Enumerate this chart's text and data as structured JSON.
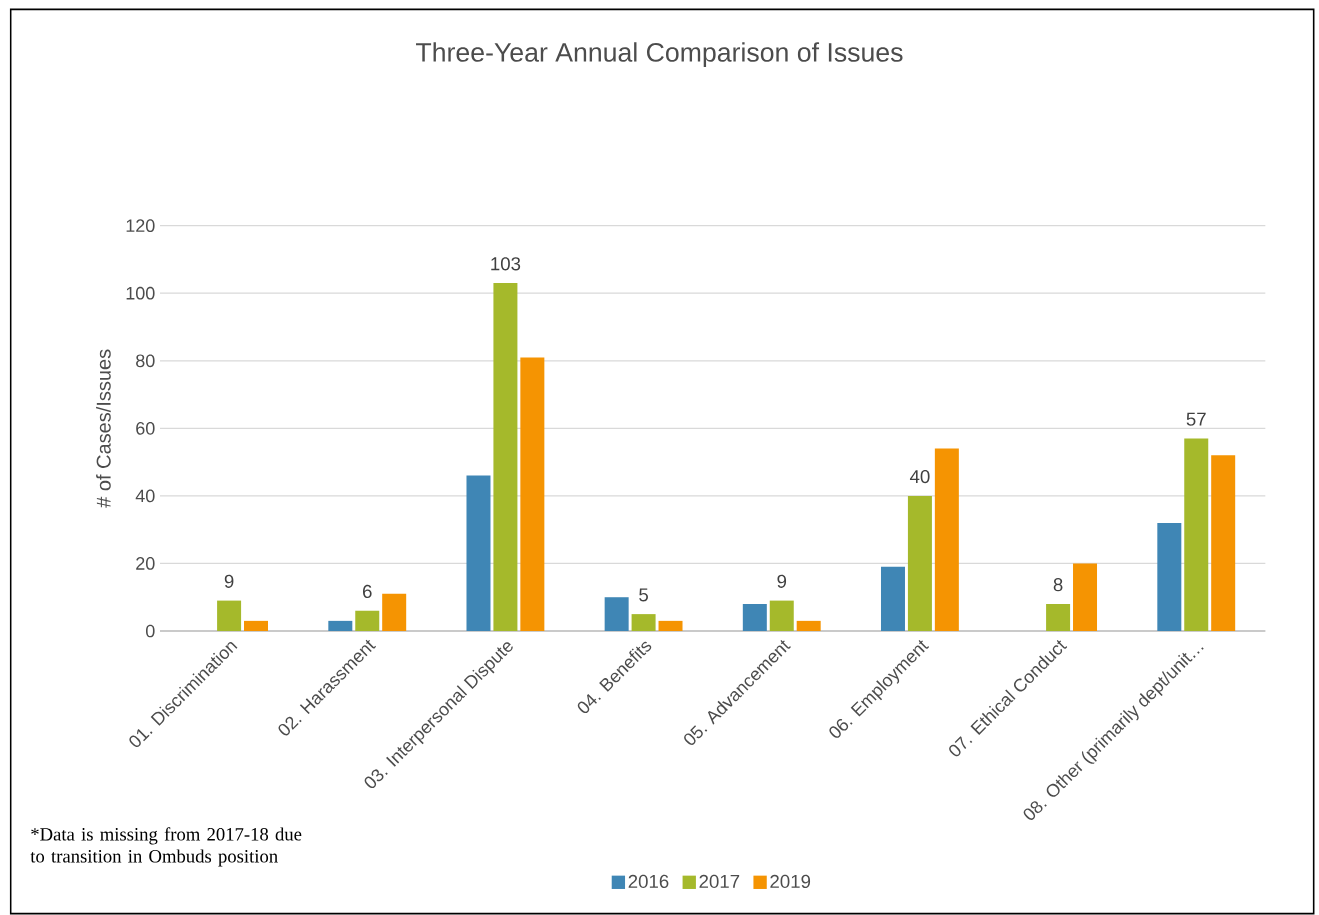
{
  "chart_data": {
    "type": "bar",
    "title": "Three-Year Annual Comparison of Issues",
    "ylabel": "# of Cases/Issues",
    "categories": [
      "01. Discrimination",
      "02. Harassment",
      "03. Interpersonal Dispute",
      "04. Benefits",
      "05. Advancement",
      "06. Employment",
      "07. Ethical Conduct",
      "08. Other (primarily dept/unit…"
    ],
    "series": [
      {
        "name": "2016",
        "color": "#3f86b5",
        "values": [
          null,
          3,
          46,
          10,
          8,
          19,
          null,
          32
        ]
      },
      {
        "name": "2017",
        "color": "#a5b92b",
        "values": [
          9,
          6,
          103,
          5,
          9,
          40,
          8,
          57
        ],
        "value_labels": [
          "9",
          "6",
          "103",
          "5",
          "9",
          "40",
          "8",
          "57"
        ]
      },
      {
        "name": "2019",
        "color": "#f59402",
        "values": [
          3,
          11,
          81,
          3,
          3,
          54,
          20,
          52
        ]
      }
    ],
    "ylim": [
      0,
      120
    ],
    "yticks": [
      0,
      20,
      40,
      60,
      80,
      100,
      120
    ],
    "grid": "y",
    "legend": "bottom",
    "annotations": [
      "*Data is missing from 2017-18 due to transition in Ombuds position"
    ]
  }
}
